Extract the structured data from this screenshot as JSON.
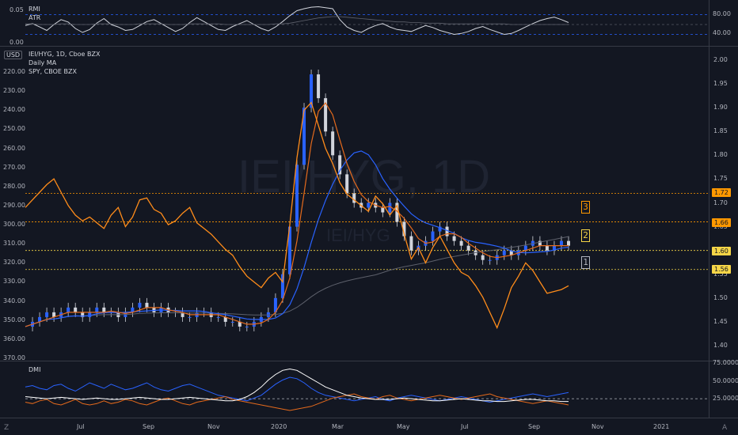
{
  "colors": {
    "bg": "#131722",
    "price_line": "#ff8c1a",
    "ma_orange": "#e56a1c",
    "ma_blue": "#2962ff",
    "ma_gray": "#5d606b",
    "candle": "#d1d4dc",
    "rmi": "#d1d4dc",
    "level_yellow": "#f5d547",
    "level_orange": "#ff9800",
    "dmi_plus": "#2962ff",
    "dmi_minus": "#e56a1c",
    "adx": "#ffffff"
  },
  "top_pane": {
    "labels": [
      "RMI",
      "ATR"
    ],
    "left_ticks": [
      "0.05",
      "0.00"
    ],
    "right_ticks": [
      "80.00",
      "40.00"
    ],
    "rmi_series": [
      58,
      62,
      55,
      48,
      60,
      70,
      65,
      52,
      44,
      50,
      63,
      72,
      60,
      55,
      48,
      50,
      58,
      66,
      70,
      62,
      54,
      46,
      52,
      64,
      74,
      66,
      58,
      50,
      48,
      56,
      62,
      68,
      60,
      52,
      47,
      55,
      66,
      78,
      88,
      92,
      95,
      96,
      94,
      92,
      70,
      55,
      48,
      44,
      52,
      58,
      62,
      55,
      50,
      48,
      46,
      52,
      58,
      54,
      48,
      44,
      40,
      42,
      46,
      52,
      56,
      50,
      45,
      40,
      42,
      48,
      55,
      62,
      68,
      72,
      75,
      70,
      64
    ],
    "atr_series": [
      0.031,
      0.031,
      0.03,
      0.03,
      0.03,
      0.031,
      0.031,
      0.03,
      0.03,
      0.03,
      0.031,
      0.031,
      0.031,
      0.03,
      0.03,
      0.03,
      0.031,
      0.031,
      0.031,
      0.031,
      0.03,
      0.03,
      0.03,
      0.031,
      0.031,
      0.031,
      0.031,
      0.031,
      0.03,
      0.03,
      0.03,
      0.03,
      0.03,
      0.03,
      0.03,
      0.031,
      0.031,
      0.032,
      0.034,
      0.036,
      0.038,
      0.04,
      0.041,
      0.042,
      0.042,
      0.041,
      0.04,
      0.039,
      0.038,
      0.037,
      0.036,
      0.035,
      0.034,
      0.034,
      0.033,
      0.033,
      0.032,
      0.032,
      0.032,
      0.031,
      0.031,
      0.031,
      0.031,
      0.031,
      0.031,
      0.031,
      0.031,
      0.031,
      0.03,
      0.03,
      0.03,
      0.03,
      0.03,
      0.03,
      0.03,
      0.03,
      0.03
    ]
  },
  "main_pane": {
    "currency_button": "USD",
    "legend": [
      "IEI/HYG, 1D, Cboe BZX",
      "Daily MA",
      "SPY, CBOE BZX"
    ],
    "watermark_symbol": "IEI/HYG, 1D",
    "watermark_sub": "IEI/HYG",
    "left_axis": [
      "220.00",
      "230.00",
      "240.00",
      "250.00",
      "260.00",
      "270.00",
      "280.00",
      "290.00",
      "300.00",
      "310.00",
      "320.00",
      "330.00",
      "340.00",
      "350.00",
      "360.00",
      "370.00"
    ],
    "right_axis": [
      "2.00",
      "1.95",
      "1.90",
      "1.85",
      "1.80",
      "1.75",
      "1.70",
      "1.65",
      "1.60",
      "1.55",
      "1.50",
      "1.45",
      "1.40"
    ],
    "levels": [
      {
        "value": "1.72",
        "color": "#ff9800",
        "num": "3"
      },
      {
        "value": "1.66",
        "color": "#ff9800",
        "num": "2"
      },
      {
        "value": "1.60",
        "color": "#f5d547",
        "num": "1"
      },
      {
        "value": "1.56",
        "color": "#f5d547",
        "num": ""
      }
    ],
    "boxes": [
      {
        "num": "3",
        "color": "#ff9800"
      },
      {
        "num": "2",
        "color": "#f5d547"
      },
      {
        "num": "1",
        "color": "#b2b5be"
      }
    ],
    "ratio_series": [
      1.44,
      1.45,
      1.46,
      1.47,
      1.46,
      1.47,
      1.48,
      1.47,
      1.46,
      1.47,
      1.48,
      1.47,
      1.47,
      1.46,
      1.47,
      1.48,
      1.49,
      1.48,
      1.47,
      1.48,
      1.47,
      1.47,
      1.46,
      1.46,
      1.47,
      1.47,
      1.46,
      1.46,
      1.45,
      1.45,
      1.44,
      1.44,
      1.45,
      1.46,
      1.47,
      1.5,
      1.55,
      1.65,
      1.78,
      1.9,
      1.97,
      1.92,
      1.85,
      1.8,
      1.76,
      1.72,
      1.7,
      1.69,
      1.7,
      1.69,
      1.68,
      1.7,
      1.66,
      1.63,
      1.6,
      1.61,
      1.62,
      1.64,
      1.65,
      1.63,
      1.62,
      1.61,
      1.6,
      1.59,
      1.58,
      1.58,
      1.59,
      1.6,
      1.59,
      1.6,
      1.61,
      1.62,
      1.61,
      1.6,
      1.61,
      1.62,
      1.61
    ],
    "spy_series": [
      291,
      287,
      283,
      279,
      276,
      283,
      290,
      295,
      298,
      296,
      299,
      302,
      295,
      291,
      301,
      296,
      287,
      286,
      292,
      294,
      300,
      298,
      294,
      291,
      299,
      302,
      305,
      309,
      313,
      316,
      322,
      327,
      330,
      333,
      328,
      325,
      330,
      300,
      265,
      240,
      236,
      248,
      260,
      268,
      278,
      284,
      287,
      290,
      293,
      285,
      289,
      295,
      290,
      305,
      318,
      312,
      320,
      312,
      306,
      313,
      320,
      325,
      327,
      332,
      338,
      346,
      354,
      344,
      333,
      327,
      320,
      324,
      330,
      336,
      335,
      334,
      332
    ]
  },
  "dmi_pane": {
    "label": "DMI",
    "right_ticks": [
      "75.0000",
      "50.0000",
      "25.0000"
    ],
    "plus_series": [
      42,
      44,
      40,
      38,
      44,
      46,
      40,
      36,
      42,
      48,
      44,
      40,
      46,
      42,
      38,
      40,
      44,
      48,
      42,
      38,
      36,
      40,
      44,
      46,
      42,
      38,
      34,
      30,
      28,
      26,
      24,
      22,
      26,
      30,
      38,
      46,
      52,
      56,
      54,
      48,
      40,
      34,
      30,
      28,
      26,
      24,
      22,
      24,
      26,
      28,
      24,
      22,
      26,
      28,
      30,
      28,
      26,
      24,
      22,
      24,
      26,
      28,
      26,
      24,
      22,
      20,
      22,
      24,
      26,
      28,
      30,
      32,
      30,
      28,
      30,
      32,
      34
    ],
    "minus_series": [
      20,
      18,
      22,
      24,
      18,
      16,
      20,
      24,
      18,
      16,
      18,
      22,
      18,
      20,
      24,
      22,
      18,
      16,
      20,
      24,
      26,
      22,
      18,
      16,
      20,
      22,
      24,
      26,
      28,
      24,
      22,
      20,
      18,
      16,
      14,
      12,
      10,
      8,
      10,
      12,
      14,
      18,
      22,
      26,
      28,
      30,
      32,
      28,
      26,
      24,
      28,
      30,
      26,
      24,
      22,
      24,
      26,
      28,
      30,
      28,
      26,
      24,
      26,
      28,
      30,
      32,
      28,
      26,
      24,
      22,
      20,
      18,
      20,
      22,
      20,
      18,
      16
    ],
    "adx_series": [
      28,
      27,
      26,
      25,
      26,
      27,
      26,
      25,
      24,
      25,
      26,
      25,
      24,
      24,
      25,
      26,
      27,
      26,
      25,
      24,
      24,
      25,
      26,
      27,
      26,
      25,
      24,
      23,
      22,
      22,
      24,
      28,
      34,
      42,
      52,
      60,
      66,
      68,
      66,
      60,
      54,
      48,
      42,
      38,
      34,
      30,
      28,
      26,
      25,
      24,
      24,
      24,
      25,
      26,
      25,
      24,
      23,
      22,
      22,
      23,
      24,
      25,
      24,
      23,
      22,
      22,
      21,
      21,
      22,
      23,
      24,
      24,
      23,
      22,
      22,
      21,
      21
    ]
  },
  "time_axis": [
    "Jul",
    "Sep",
    "Nov",
    "2020",
    "Mar",
    "May",
    "Jul",
    "Sep",
    "Nov",
    "2021"
  ],
  "corner_left": "Z",
  "corner_right": "A"
}
